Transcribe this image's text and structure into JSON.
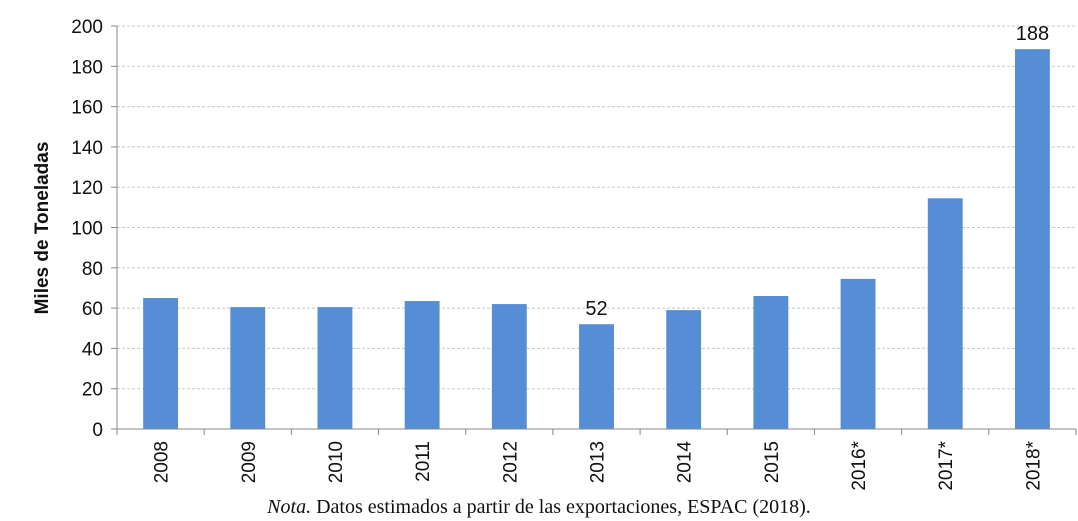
{
  "chart_data": {
    "type": "bar",
    "title": "",
    "xlabel": "",
    "ylabel": "Miles de Toneladas",
    "categories": [
      "2008",
      "2009",
      "2010",
      "2011",
      "2012",
      "2013",
      "2014",
      "2015",
      "2016*",
      "2017*",
      "2018*"
    ],
    "values": [
      65,
      60.5,
      60.5,
      63.5,
      62,
      52,
      59,
      66,
      74.5,
      114.5,
      188.5
    ],
    "data_labels": [
      {
        "category": "2013",
        "text": "52"
      },
      {
        "category": "2018*",
        "text": "188"
      }
    ],
    "ylim": [
      0,
      200
    ],
    "yticks": [
      0,
      20,
      40,
      60,
      80,
      100,
      120,
      140,
      160,
      180,
      200
    ],
    "grid": true,
    "bar_color": "#558ed5",
    "grid_color": "#c8c8c8"
  },
  "note": {
    "prefix": "Nota.",
    "text": " Datos estimados a partir de las exportaciones, ESPAC (2018)."
  }
}
